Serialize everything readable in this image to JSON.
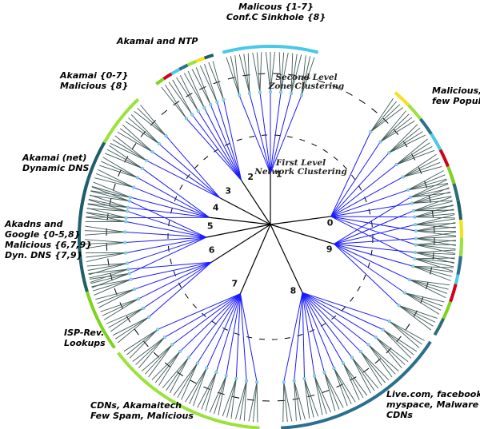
{
  "diagram": {
    "level_labels": {
      "first": [
        "First Level",
        "Network Clustering"
      ],
      "second": [
        "Second Level",
        "Zone Clustering"
      ]
    },
    "colors": {
      "network_edge": "#000000",
      "zone_edge": "#1a1aff",
      "leaf_edge": "#3f5a57",
      "zone_node": "#8fd8f0",
      "ring_dash": "#000000",
      "leaf_palette": [
        "#2e6f74",
        "#7ed321",
        "#d0021b",
        "#4ac8e8",
        "#2b6f8f",
        "#9be23c",
        "#f5e11a",
        "#1e5f6a"
      ]
    },
    "clusters": [
      {
        "id": "0",
        "angle": -19,
        "zones": 11,
        "leaves_per_zone": 4
      },
      {
        "id": "1",
        "angle": -90,
        "zones": 7,
        "leaves_per_zone": 3
      },
      {
        "id": "2",
        "angle": -117,
        "zones": 7,
        "leaves_per_zone": 2
      },
      {
        "id": "3",
        "angle": -142,
        "zones": 4,
        "leaves_per_zone": 3
      },
      {
        "id": "4",
        "angle": -162,
        "zones": 6,
        "leaves_per_zone": 3
      },
      {
        "id": "5",
        "angle": 180,
        "zones": 8,
        "leaves_per_zone": 3
      },
      {
        "id": "6",
        "angle": 157,
        "zones": 6,
        "leaves_per_zone": 3
      },
      {
        "id": "7",
        "angle": 118,
        "zones": 12,
        "leaves_per_zone": 3
      },
      {
        "id": "8",
        "angle": 60,
        "zones": 13,
        "leaves_per_zone": 3
      },
      {
        "id": "9",
        "angle": 6,
        "zones": 9,
        "leaves_per_zone": 4
      }
    ],
    "annotations": [
      {
        "id": "malicious-1-7",
        "lines": [
          "Malicous {1-7}",
          "Conf.C Sinkhole {8}"
        ]
      },
      {
        "id": "akamai-ntp",
        "lines": [
          "Akamai and NTP"
        ]
      },
      {
        "id": "akamai-0-7",
        "lines": [
          "Akamai {0-7}",
          "Malicious {8}"
        ]
      },
      {
        "id": "malicious-popular",
        "lines": [
          "Malicious,",
          "few Popular"
        ]
      },
      {
        "id": "akamai-net",
        "lines": [
          "Akamai (net)",
          "Dynamic DNS"
        ]
      },
      {
        "id": "akadns-google",
        "lines": [
          "Akadns and",
          "Google {0-5,8}",
          "Malicious {6,7,9}",
          "Dyn. DNS {7,9}"
        ]
      },
      {
        "id": "isp-rev",
        "lines": [
          "ISP-Rev.",
          "Lookups"
        ]
      },
      {
        "id": "cdns-akamaitech",
        "lines": [
          "CDNs, Akamaitech",
          "Few Spam, Malicious"
        ]
      },
      {
        "id": "live-facebook",
        "lines": [
          "Live.com, facebook ,",
          "myspace, Malware and",
          "CDNs"
        ]
      }
    ]
  }
}
